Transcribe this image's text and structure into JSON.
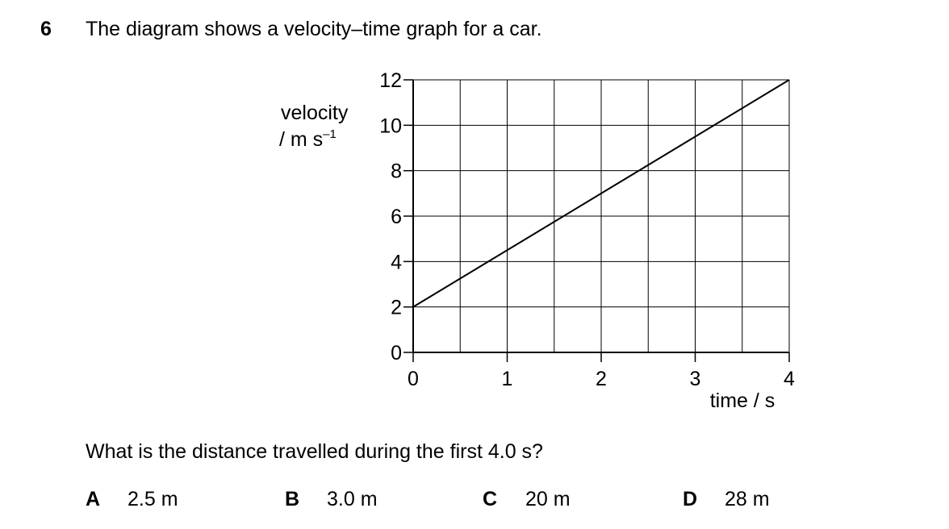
{
  "question": {
    "number": "6",
    "intro": "The diagram shows a velocity–time graph for a car.",
    "prompt": "What is the distance travelled during the first 4.0 s?"
  },
  "options": [
    {
      "letter": "A",
      "value": "2.5 m"
    },
    {
      "letter": "B",
      "value": "3.0 m"
    },
    {
      "letter": "C",
      "value": "20 m"
    },
    {
      "letter": "D",
      "value": "28 m"
    }
  ],
  "chart_data": {
    "type": "line",
    "ylabel": "velocity",
    "ylabel_unit_base": "/ m s",
    "ylabel_unit_exp": "–1",
    "xlabel": "time / s",
    "xlim": [
      0,
      4
    ],
    "ylim": [
      0,
      12
    ],
    "x_ticks": [
      "0",
      "1",
      "2",
      "3",
      "4"
    ],
    "y_ticks": [
      "0",
      "2",
      "4",
      "6",
      "8",
      "10",
      "12"
    ],
    "grid": true,
    "series": [
      {
        "x": [
          0,
          4
        ],
        "y": [
          2,
          12
        ]
      }
    ]
  }
}
